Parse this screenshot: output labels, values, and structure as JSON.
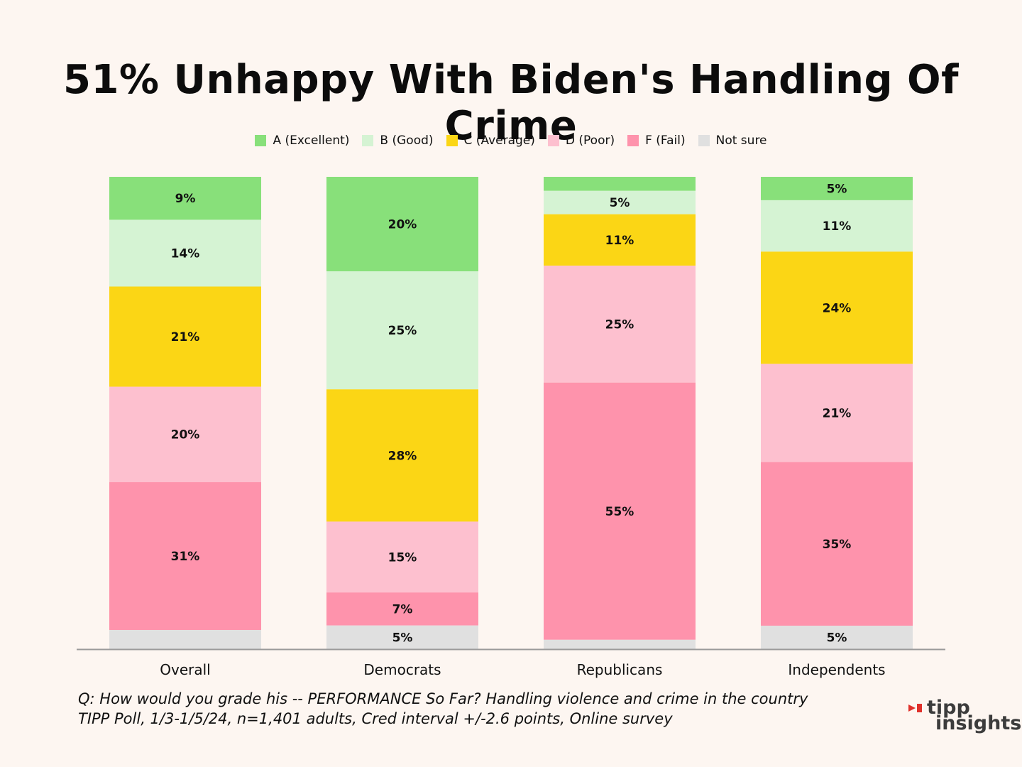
{
  "title": "51% Unhappy With Biden's Handling Of Crime",
  "chart_data": {
    "type": "bar",
    "stacked": true,
    "categories": [
      "Overall",
      "Democrats",
      "Republicans",
      "Independents"
    ],
    "ylim": [
      0,
      100
    ],
    "legend_position": "top",
    "series": [
      {
        "name": "A (Excellent)",
        "color": "#88e07a",
        "values": [
          9,
          20,
          3,
          5
        ],
        "labels": [
          "9%",
          "20%",
          "",
          "5%"
        ]
      },
      {
        "name": "B (Good)",
        "color": "#d5f3d3",
        "values": [
          14,
          25,
          5,
          11
        ],
        "labels": [
          "14%",
          "25%",
          "5%",
          "11%"
        ]
      },
      {
        "name": "C (Average)",
        "color": "#fbd615",
        "values": [
          21,
          28,
          11,
          24
        ],
        "labels": [
          "21%",
          "28%",
          "11%",
          "24%"
        ]
      },
      {
        "name": "D (Poor)",
        "color": "#fdc0cf",
        "values": [
          20,
          15,
          25,
          21
        ],
        "labels": [
          "20%",
          "15%",
          "25%",
          "21%"
        ]
      },
      {
        "name": "F (Fail)",
        "color": "#fe93ac",
        "values": [
          31,
          7,
          55,
          35
        ],
        "labels": [
          "31%",
          "7%",
          "55%",
          "35%"
        ]
      },
      {
        "name": "Not sure",
        "color": "#e0e0e0",
        "values": [
          4,
          5,
          2,
          5
        ],
        "labels": [
          "",
          "5%",
          "",
          "5%"
        ]
      }
    ]
  },
  "footnote": {
    "line1": "Q:  How would you grade his -- PERFORMANCE So Far? Handling violence and crime in the country",
    "line2": "TIPP Poll, 1/3-1/5/24, n=1,401 adults, Cred interval +/-2.6 points, Online survey"
  },
  "logo": {
    "word1": "tipp",
    "word2": "insights",
    "accent": "#e0312b"
  }
}
